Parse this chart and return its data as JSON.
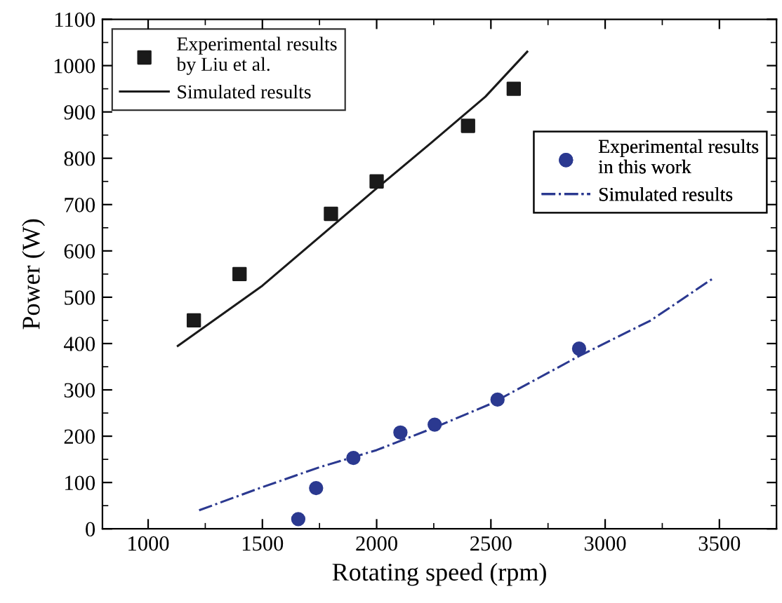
{
  "chart_data": {
    "type": "scatter",
    "xlabel": "Rotating speed (rpm)",
    "ylabel": "Power (W)",
    "xlim": [
      800,
      3750
    ],
    "xticks": [
      1000,
      1500,
      2000,
      2500,
      3000,
      3500
    ],
    "ylim": [
      0,
      1100
    ],
    "yticks": [
      0,
      100,
      200,
      300,
      400,
      500,
      600,
      700,
      800,
      900,
      1000,
      1100
    ],
    "grid": false,
    "legend": [
      "top left",
      "center right"
    ],
    "series": [
      {
        "name": "Experimental results\nby Liu et al.",
        "marker": "square",
        "color": "#1a1a1a",
        "x": [
          1200,
          1400,
          1800,
          2000,
          2400,
          2600
        ],
        "values": [
          450,
          550,
          680,
          750,
          870,
          950
        ]
      },
      {
        "name": "Simulated results",
        "type": "line",
        "line_style": "solid",
        "color": "#1a1a1a",
        "x": [
          1130,
          1500,
          1988,
          2238,
          2476,
          2659
        ],
        "values": [
          395,
          525,
          730,
          833,
          933,
          1030
        ]
      },
      {
        "name": "Experimental results\nin this work",
        "marker": "circle",
        "color": "#2b3990",
        "x": [
          1657,
          1735,
          1898,
          2104,
          2254,
          2529,
          2886
        ],
        "values": [
          21,
          88,
          153,
          208,
          225,
          279,
          389
        ]
      },
      {
        "name": "Simulated results",
        "type": "line",
        "line_style": "dashdot",
        "color": "#2b3990",
        "x": [
          1223,
          1500,
          1750,
          2000,
          2250,
          2500,
          2890,
          3200,
          3470
        ],
        "values": [
          40,
          90,
          133,
          170,
          218,
          270,
          374,
          450,
          540
        ]
      }
    ]
  }
}
